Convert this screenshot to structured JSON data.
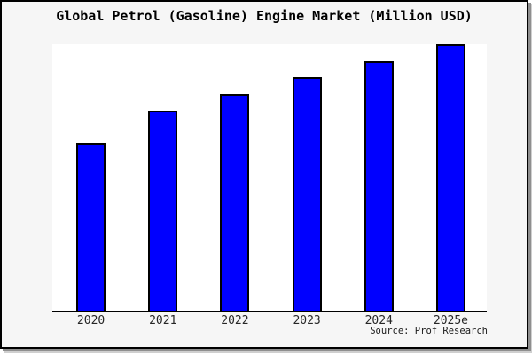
{
  "chart": {
    "title": "Global Petrol (Gasoline) Engine Market (Million USD)",
    "source": "Source: Prof Research"
  },
  "chart_data": {
    "type": "bar",
    "title": "Global Petrol (Gasoline) Engine Market (Million USD)",
    "categories": [
      "2020",
      "2021",
      "2022",
      "2023",
      "2024",
      "2025e"
    ],
    "values": [
      62.8,
      75.1,
      81.4,
      87.7,
      93.8,
      100
    ],
    "value_note": "y-axis has no tick labels; values are relative estimates with 2025e = 100",
    "xlabel": "",
    "ylabel": "",
    "ylim": [
      0,
      100
    ],
    "grid": false,
    "legend": false,
    "y_axis_visible": false,
    "source_label": "Source: Prof Research"
  },
  "colors": {
    "page_background": "#f6f6f6",
    "plot_background": "#ffffff",
    "bar_fill": "#0000ff",
    "bar_border": "#000000",
    "axis_line": "#000000",
    "frame_border": "#000000",
    "shadow": "#8f8f8f",
    "title_text": "#000000",
    "label_text": "#262626"
  }
}
